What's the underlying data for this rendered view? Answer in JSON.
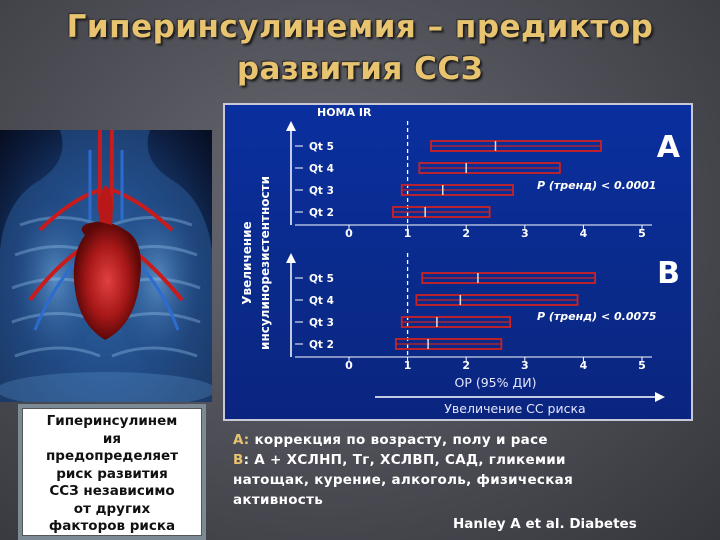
{
  "title": {
    "line1": "Гиперинсулинемия – предиктор",
    "line2": "развития ССЗ"
  },
  "caption": {
    "lines": [
      "Гиперинсулинем",
      "ия",
      "предопределяет",
      "риск развития",
      "ССЗ независимо",
      "от других",
      "факторов риска"
    ]
  },
  "chart": {
    "homa_label": "HOMA IR",
    "y_axis_label_1": "Увеличение",
    "y_axis_label_2": "инсулинорезистентности",
    "x_axis_label": "ОР (95% ДИ)",
    "bottom_arrow_label": "Увеличение СС риска",
    "colors": {
      "bar": "#cc2222",
      "dot": "#e0e0e0",
      "axis": "#ffffff",
      "panel": "#0a2a8a"
    }
  },
  "chart_data": [
    {
      "type": "forest",
      "panel": "А",
      "p_value": "P (тренд) < 0.0001",
      "categories": [
        "Qt 5",
        "Qt 4",
        "Qt 3",
        "Qt 2"
      ],
      "point": [
        2.5,
        2.0,
        1.6,
        1.3
      ],
      "low": [
        1.4,
        1.2,
        0.9,
        0.75
      ],
      "high": [
        4.3,
        3.6,
        2.8,
        2.4
      ],
      "xticks": [
        "0",
        "1",
        "2",
        "3",
        "4",
        "5"
      ],
      "xlim": [
        0,
        5
      ],
      "reference_line": 1
    },
    {
      "type": "forest",
      "panel": "В",
      "p_value": "P (тренд) < 0.0075",
      "categories": [
        "Qt 5",
        "Qt 4",
        "Qt 3",
        "Qt 2"
      ],
      "point": [
        2.2,
        1.9,
        1.5,
        1.35
      ],
      "low": [
        1.25,
        1.15,
        0.9,
        0.8
      ],
      "high": [
        4.2,
        3.9,
        2.75,
        2.6
      ],
      "xticks": [
        "0",
        "1",
        "2",
        "3",
        "4",
        "5"
      ],
      "xlim": [
        0,
        5
      ],
      "reference_line": 1
    }
  ],
  "notes": {
    "a_label": "А:",
    "a_text": " коррекция по возрасту, полу и расе",
    "b_label": "В",
    "b_text": ": А + ХСЛНП, Тг, ХСЛВП, САД, гликемии",
    "b_text_2": "натощак, курение, алкоголь, физическая",
    "b_text_3": "активность"
  },
  "source": "Hanley A et al. Diabetes"
}
